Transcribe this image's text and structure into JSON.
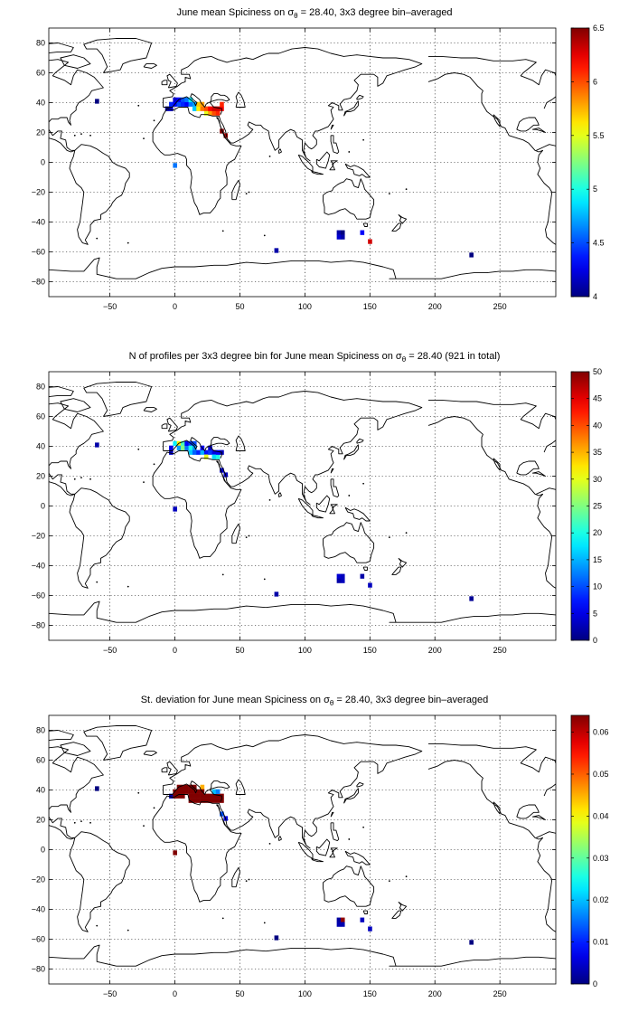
{
  "panels": [
    {
      "title_parts": {
        "a": "June mean Spiciness on ",
        "sigma": "σ",
        "sub": "θ",
        "b": " = 28.40, 3x3 degree bin–averaged"
      },
      "colorbar_ticks": [
        "4",
        "4.5",
        "5",
        "5.5",
        "6",
        "6.5"
      ],
      "colorbar_range": [
        4,
        6.5
      ]
    },
    {
      "title_parts": {
        "a": "N of profiles per 3x3 degree bin for June mean Spiciness on ",
        "sigma": "σ",
        "sub": "θ",
        "b": " = 28.40 (921 in total)"
      },
      "colorbar_ticks": [
        "0",
        "5",
        "10",
        "15",
        "20",
        "25",
        "30",
        "35",
        "40",
        "45",
        "50"
      ],
      "colorbar_range": [
        0,
        50
      ]
    },
    {
      "title_parts": {
        "a": "St. deviation for June mean Spiciness on ",
        "sigma": "σ",
        "sub": "θ",
        "b": " = 28.40, 3x3 degree bin–averaged"
      },
      "colorbar_ticks": [
        "0",
        "0.01",
        "0.02",
        "0.03",
        "0.04",
        "0.05",
        "0.06"
      ],
      "colorbar_range": [
        0,
        0.064
      ]
    }
  ],
  "axes": {
    "x_ticks": [
      "−50",
      "0",
      "50",
      "100",
      "150",
      "200",
      "250"
    ],
    "y_ticks": [
      "80",
      "60",
      "40",
      "20",
      "0",
      "−20",
      "−40",
      "−60",
      "−80"
    ],
    "x_range": [
      -97,
      293
    ],
    "y_range": [
      -90,
      90
    ],
    "grid": "dotted"
  },
  "colormap": "jet",
  "chart_data": [
    {
      "type": "heatmap",
      "title": "June mean Spiciness on σθ = 28.40, 3x3 degree bin–averaged",
      "xlim": [
        -97,
        293
      ],
      "ylim": [
        -90,
        90
      ],
      "clim": [
        4,
        6.5
      ],
      "bins": [
        {
          "lon": -60,
          "lat": 41,
          "v": 4.0
        },
        {
          "lon": -6,
          "lat": 36,
          "v": 4.1
        },
        {
          "lon": -3,
          "lat": 36,
          "v": 4.2
        },
        {
          "lon": -3,
          "lat": 39,
          "v": 4.4
        },
        {
          "lon": 0,
          "lat": 39,
          "v": 4.3
        },
        {
          "lon": 3,
          "lat": 39,
          "v": 4.5
        },
        {
          "lon": 0,
          "lat": 42,
          "v": 4.2
        },
        {
          "lon": 3,
          "lat": 42,
          "v": 4.3
        },
        {
          "lon": 6,
          "lat": 42,
          "v": 4.5
        },
        {
          "lon": 6,
          "lat": 39,
          "v": 4.4
        },
        {
          "lon": 9,
          "lat": 39,
          "v": 4.3
        },
        {
          "lon": 9,
          "lat": 42,
          "v": 4.6
        },
        {
          "lon": 12,
          "lat": 39,
          "v": 4.6
        },
        {
          "lon": 15,
          "lat": 39,
          "v": 4.7
        },
        {
          "lon": 12,
          "lat": 42,
          "v": 4.9
        },
        {
          "lon": 15,
          "lat": 36,
          "v": 4.8
        },
        {
          "lon": 18,
          "lat": 36,
          "v": 5.6
        },
        {
          "lon": 18,
          "lat": 39,
          "v": 5.7
        },
        {
          "lon": 21,
          "lat": 36,
          "v": 5.9
        },
        {
          "lon": 21,
          "lat": 39,
          "v": 5.8
        },
        {
          "lon": 24,
          "lat": 33,
          "v": 5.5
        },
        {
          "lon": 24,
          "lat": 36,
          "v": 6.0
        },
        {
          "lon": 27,
          "lat": 33,
          "v": 5.8
        },
        {
          "lon": 27,
          "lat": 36,
          "v": 6.2
        },
        {
          "lon": 30,
          "lat": 33,
          "v": 6.0
        },
        {
          "lon": 30,
          "lat": 36,
          "v": 6.3
        },
        {
          "lon": 33,
          "lat": 33,
          "v": 6.1
        },
        {
          "lon": 33,
          "lat": 36,
          "v": 6.3
        },
        {
          "lon": 36,
          "lat": 36,
          "v": 6.2
        },
        {
          "lon": 36,
          "lat": 39,
          "v": 6.1
        },
        {
          "lon": 36,
          "lat": 21,
          "v": 6.5
        },
        {
          "lon": 39,
          "lat": 18,
          "v": 6.4
        },
        {
          "lon": 0,
          "lat": -2,
          "v": 4.6
        },
        {
          "lon": 126,
          "lat": -47,
          "v": 4.1
        },
        {
          "lon": 129,
          "lat": -47,
          "v": 4.0
        },
        {
          "lon": 129,
          "lat": -50,
          "v": 4.1
        },
        {
          "lon": 126,
          "lat": -50,
          "v": 4.2
        },
        {
          "lon": 144,
          "lat": -47,
          "v": 4.3
        },
        {
          "lon": 150,
          "lat": -53,
          "v": 6.3
        },
        {
          "lon": 78,
          "lat": -59,
          "v": 4.1
        },
        {
          "lon": 228,
          "lat": -62,
          "v": 4.0
        }
      ]
    },
    {
      "type": "heatmap",
      "title": "N of profiles per 3x3 degree bin for June mean Spiciness on σθ = 28.40 (921 in total)",
      "xlim": [
        -97,
        293
      ],
      "ylim": [
        -90,
        90
      ],
      "clim": [
        0,
        50
      ],
      "bins": [
        {
          "lon": -60,
          "lat": 41,
          "v": 2
        },
        {
          "lon": -3,
          "lat": 36,
          "v": 4
        },
        {
          "lon": -3,
          "lat": 39,
          "v": 5
        },
        {
          "lon": 0,
          "lat": 42,
          "v": 18
        },
        {
          "lon": 3,
          "lat": 42,
          "v": 32
        },
        {
          "lon": 3,
          "lat": 39,
          "v": 14
        },
        {
          "lon": 6,
          "lat": 42,
          "v": 22
        },
        {
          "lon": 6,
          "lat": 39,
          "v": 25
        },
        {
          "lon": 9,
          "lat": 39,
          "v": 12
        },
        {
          "lon": 9,
          "lat": 42,
          "v": 6
        },
        {
          "lon": 12,
          "lat": 42,
          "v": 9
        },
        {
          "lon": 12,
          "lat": 39,
          "v": 20
        },
        {
          "lon": 12,
          "lat": 36,
          "v": 16
        },
        {
          "lon": 15,
          "lat": 42,
          "v": 10
        },
        {
          "lon": 15,
          "lat": 39,
          "v": 14
        },
        {
          "lon": 15,
          "lat": 36,
          "v": 11
        },
        {
          "lon": 18,
          "lat": 36,
          "v": 8
        },
        {
          "lon": 21,
          "lat": 36,
          "v": 15
        },
        {
          "lon": 21,
          "lat": 39,
          "v": 6
        },
        {
          "lon": 24,
          "lat": 36,
          "v": 7
        },
        {
          "lon": 24,
          "lat": 33,
          "v": 30
        },
        {
          "lon": 27,
          "lat": 36,
          "v": 9
        },
        {
          "lon": 27,
          "lat": 39,
          "v": 4
        },
        {
          "lon": 30,
          "lat": 36,
          "v": 5
        },
        {
          "lon": 30,
          "lat": 33,
          "v": 17
        },
        {
          "lon": 33,
          "lat": 33,
          "v": 20
        },
        {
          "lon": 33,
          "lat": 36,
          "v": 6
        },
        {
          "lon": 36,
          "lat": 36,
          "v": 3
        },
        {
          "lon": 36,
          "lat": 24,
          "v": 4
        },
        {
          "lon": 39,
          "lat": 21,
          "v": 3
        },
        {
          "lon": 0,
          "lat": -2,
          "v": 3
        },
        {
          "lon": 126,
          "lat": -47,
          "v": 4
        },
        {
          "lon": 129,
          "lat": -47,
          "v": 3
        },
        {
          "lon": 129,
          "lat": -50,
          "v": 3
        },
        {
          "lon": 126,
          "lat": -50,
          "v": 2
        },
        {
          "lon": 144,
          "lat": -47,
          "v": 2
        },
        {
          "lon": 150,
          "lat": -53,
          "v": 3
        },
        {
          "lon": 78,
          "lat": -59,
          "v": 2
        },
        {
          "lon": 228,
          "lat": -62,
          "v": 1
        }
      ]
    },
    {
      "type": "heatmap",
      "title": "St. deviation for June mean Spiciness on σθ = 28.40, 3x3 degree bin–averaged",
      "xlim": [
        -97,
        293
      ],
      "ylim": [
        -90,
        90
      ],
      "clim": [
        0,
        0.064
      ],
      "bins": [
        {
          "lon": -60,
          "lat": 41,
          "v": 0.0
        },
        {
          "lon": -3,
          "lat": 36,
          "v": 0.003
        },
        {
          "lon": 0,
          "lat": 36,
          "v": 0.064
        },
        {
          "lon": 0,
          "lat": 39,
          "v": 0.064
        },
        {
          "lon": 3,
          "lat": 36,
          "v": 0.064
        },
        {
          "lon": 3,
          "lat": 39,
          "v": 0.064
        },
        {
          "lon": 3,
          "lat": 42,
          "v": 0.064
        },
        {
          "lon": 6,
          "lat": 42,
          "v": 0.064
        },
        {
          "lon": 6,
          "lat": 39,
          "v": 0.064
        },
        {
          "lon": 6,
          "lat": 36,
          "v": 0.064
        },
        {
          "lon": 9,
          "lat": 42,
          "v": 0.064
        },
        {
          "lon": 9,
          "lat": 39,
          "v": 0.064
        },
        {
          "lon": 12,
          "lat": 42,
          "v": 0.064
        },
        {
          "lon": 12,
          "lat": 39,
          "v": 0.064
        },
        {
          "lon": 12,
          "lat": 36,
          "v": 0.064
        },
        {
          "lon": 12,
          "lat": 33,
          "v": 0.064
        },
        {
          "lon": 15,
          "lat": 42,
          "v": 0.064
        },
        {
          "lon": 15,
          "lat": 39,
          "v": 0.064
        },
        {
          "lon": 15,
          "lat": 36,
          "v": 0.064
        },
        {
          "lon": 15,
          "lat": 33,
          "v": 0.064
        },
        {
          "lon": 18,
          "lat": 39,
          "v": 0.064
        },
        {
          "lon": 18,
          "lat": 36,
          "v": 0.064
        },
        {
          "lon": 18,
          "lat": 33,
          "v": 0.064
        },
        {
          "lon": 21,
          "lat": 42,
          "v": 0.045
        },
        {
          "lon": 21,
          "lat": 39,
          "v": 0.064
        },
        {
          "lon": 21,
          "lat": 36,
          "v": 0.064
        },
        {
          "lon": 21,
          "lat": 33,
          "v": 0.064
        },
        {
          "lon": 24,
          "lat": 36,
          "v": 0.064
        },
        {
          "lon": 24,
          "lat": 33,
          "v": 0.064
        },
        {
          "lon": 27,
          "lat": 36,
          "v": 0.064
        },
        {
          "lon": 27,
          "lat": 33,
          "v": 0.064
        },
        {
          "lon": 30,
          "lat": 36,
          "v": 0.064
        },
        {
          "lon": 30,
          "lat": 33,
          "v": 0.064
        },
        {
          "lon": 33,
          "lat": 36,
          "v": 0.064
        },
        {
          "lon": 33,
          "lat": 33,
          "v": 0.064
        },
        {
          "lon": 30,
          "lat": 39,
          "v": 0.02
        },
        {
          "lon": 33,
          "lat": 39,
          "v": 0.016
        },
        {
          "lon": 36,
          "lat": 36,
          "v": 0.064
        },
        {
          "lon": 36,
          "lat": 33,
          "v": 0.064
        },
        {
          "lon": 36,
          "lat": 24,
          "v": 0.013
        },
        {
          "lon": 39,
          "lat": 21,
          "v": 0.006
        },
        {
          "lon": 0,
          "lat": -2,
          "v": 0.064
        },
        {
          "lon": 126,
          "lat": -47,
          "v": 0.002
        },
        {
          "lon": 129,
          "lat": -47,
          "v": 0.063
        },
        {
          "lon": 129,
          "lat": -50,
          "v": 0.003
        },
        {
          "lon": 126,
          "lat": -50,
          "v": 0.003
        },
        {
          "lon": 144,
          "lat": -47,
          "v": 0.004
        },
        {
          "lon": 150,
          "lat": -53,
          "v": 0.004
        },
        {
          "lon": 78,
          "lat": -59,
          "v": 0.0
        },
        {
          "lon": 228,
          "lat": -62,
          "v": 0.0
        }
      ]
    }
  ]
}
